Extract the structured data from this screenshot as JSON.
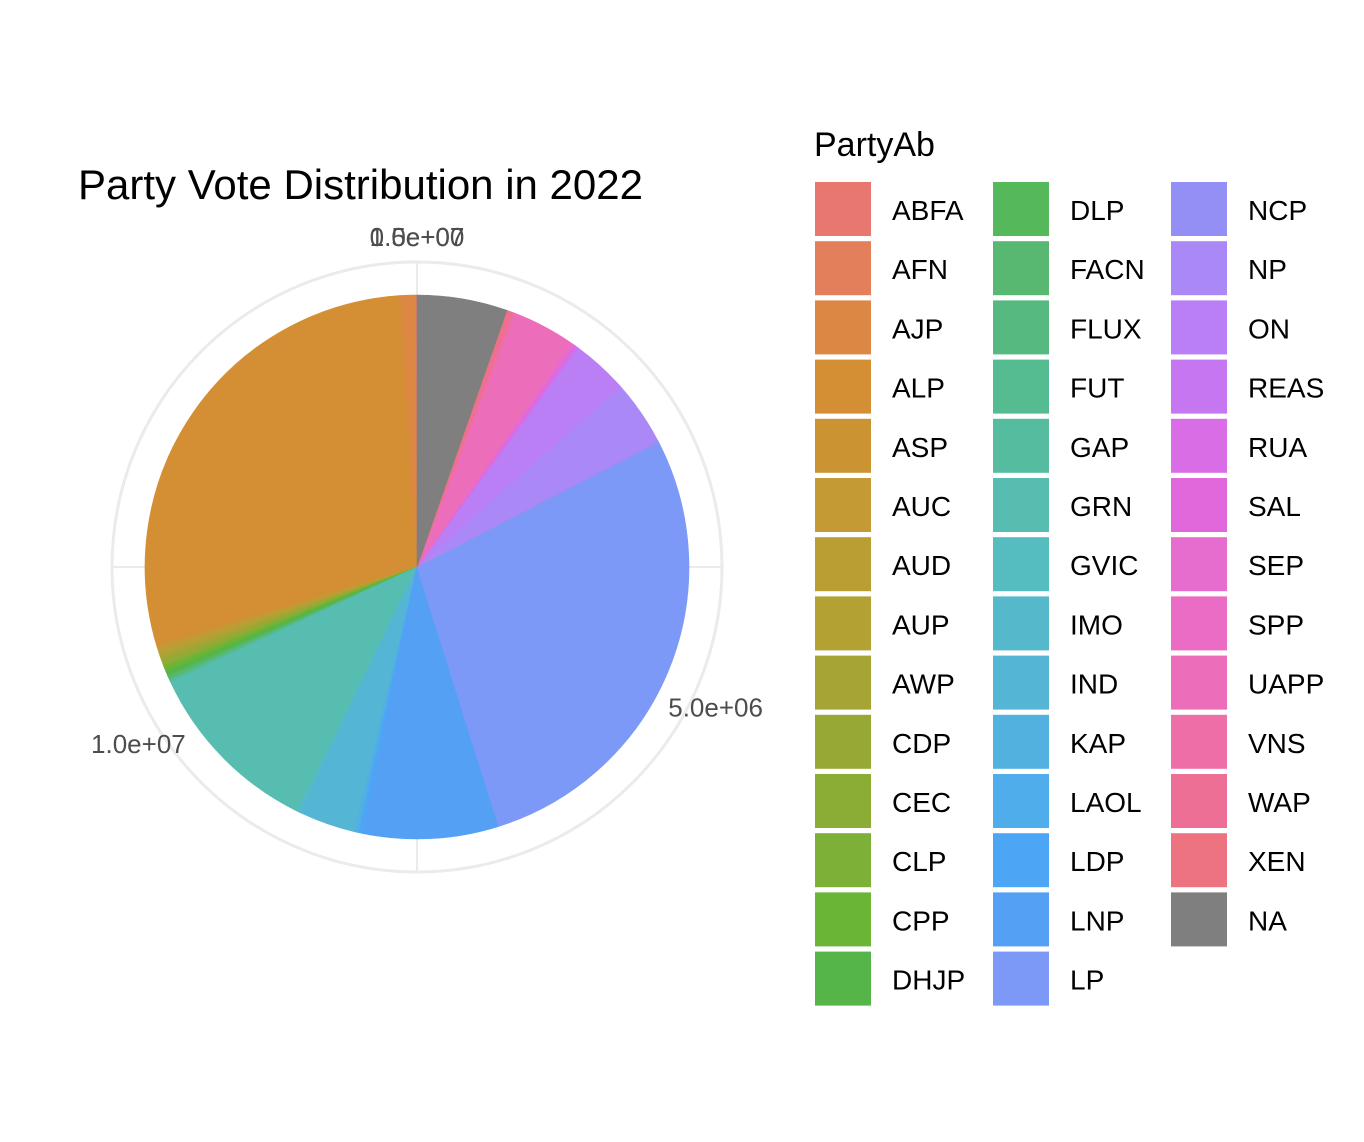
{
  "chart_data": {
    "type": "pie",
    "title": "Party Vote Distribution in 2022",
    "legend_title": "PartyAb",
    "legend_placement": "right",
    "grid": true,
    "axis_ticks": [
      "0.0e+00",
      "1.5e+07",
      "5.0e+06",
      "1.0e+07"
    ],
    "slices": [
      {
        "name": "ABFA",
        "value": 10000,
        "color": "#E8776F"
      },
      {
        "name": "AFN",
        "value": 10000,
        "color": "#E47F5C"
      },
      {
        "name": "AJP",
        "value": 150000,
        "color": "#DD8745"
      },
      {
        "name": "ALP",
        "value": 4800000,
        "color": "#D48F35"
      },
      {
        "name": "ASP",
        "value": 30000,
        "color": "#CC9333"
      },
      {
        "name": "AUC",
        "value": 20000,
        "color": "#C49A35"
      },
      {
        "name": "AUD",
        "value": 40000,
        "color": "#BB9E33"
      },
      {
        "name": "AUP",
        "value": 30000,
        "color": "#B3A134"
      },
      {
        "name": "AWP",
        "value": 30000,
        "color": "#A7A436"
      },
      {
        "name": "CDP",
        "value": 50000,
        "color": "#97A934"
      },
      {
        "name": "CEC",
        "value": 20000,
        "color": "#8BAD35"
      },
      {
        "name": "CLP",
        "value": 20000,
        "color": "#7CB036"
      },
      {
        "name": "CPP",
        "value": 40000,
        "color": "#6AB436"
      },
      {
        "name": "DHJP",
        "value": 40000,
        "color": "#56B548"
      },
      {
        "name": "DLP",
        "value": 20000,
        "color": "#55B85A"
      },
      {
        "name": "FACN",
        "value": 20000,
        "color": "#58B771"
      },
      {
        "name": "FLUX",
        "value": 10000,
        "color": "#56B980"
      },
      {
        "name": "FUT",
        "value": 10000,
        "color": "#55BB90"
      },
      {
        "name": "GAP",
        "value": 20000,
        "color": "#55BC9F"
      },
      {
        "name": "GRN",
        "value": 1800000,
        "color": "#57BDB1"
      },
      {
        "name": "GVIC",
        "value": 20000,
        "color": "#55BCC0"
      },
      {
        "name": "IMO",
        "value": 30000,
        "color": "#55B8CB"
      },
      {
        "name": "IND",
        "value": 550000,
        "color": "#54B5D5"
      },
      {
        "name": "KAP",
        "value": 30000,
        "color": "#53B1E0"
      },
      {
        "name": "LAOL",
        "value": 20000,
        "color": "#50ADEB"
      },
      {
        "name": "LDP",
        "value": 40000,
        "color": "#4DA6F5"
      },
      {
        "name": "LNP",
        "value": 1350000,
        "color": "#54A0F5"
      },
      {
        "name": "LP",
        "value": 4650000,
        "color": "#7D99F7"
      },
      {
        "name": "NCP",
        "value": 20000,
        "color": "#948FF5"
      },
      {
        "name": "NP",
        "value": 650000,
        "color": "#AA88F5"
      },
      {
        "name": "ON",
        "value": 560000,
        "color": "#BA7FF5"
      },
      {
        "name": "REAS",
        "value": 20000,
        "color": "#C676F0"
      },
      {
        "name": "RUA",
        "value": 20000,
        "color": "#D86DE6"
      },
      {
        "name": "SAL",
        "value": 20000,
        "color": "#E068DA"
      },
      {
        "name": "SEP",
        "value": 20000,
        "color": "#E66CCD"
      },
      {
        "name": "SPP",
        "value": 20000,
        "color": "#EA6CC4"
      },
      {
        "name": "UAPP",
        "value": 610000,
        "color": "#EC6EBA"
      },
      {
        "name": "VNS",
        "value": 30000,
        "color": "#EE6FA8"
      },
      {
        "name": "WAP",
        "value": 40000,
        "color": "#EE6F95"
      },
      {
        "name": "XEN",
        "value": 20000,
        "color": "#ED7380"
      },
      {
        "name": "NA",
        "value": 900000,
        "color": "#7F7F7F"
      }
    ]
  }
}
